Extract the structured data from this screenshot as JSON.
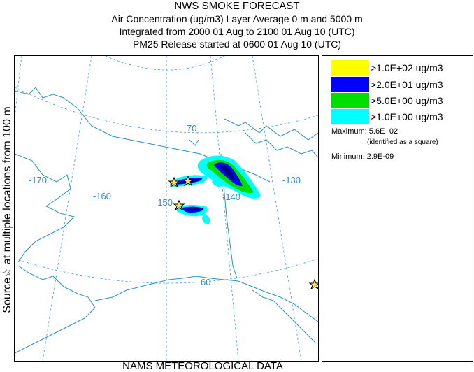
{
  "header": {
    "title": "NWS SMOKE FORECAST",
    "line2": "Air Concentration (ug/m3) Layer Average     0 m and  5000 m",
    "line3": "Integrated from 2000 01 Aug to 2100 01 Aug 10 (UTC)",
    "line4": "PM25 Release started at 0600 01 Aug 10 (UTC)"
  },
  "side_label": "Source☆   at multiple locations    from    100 m",
  "map": {
    "longitude_labels": [
      "-170",
      "-160",
      "-150",
      "-140",
      "-130"
    ],
    "latitude_labels": [
      "70",
      "60"
    ],
    "colors": {
      "coast": "#2a8fc8",
      "grid": "#3a9ad6",
      "label": "#2a8fc8",
      "border": "#2a8fc8"
    }
  },
  "legend": {
    "items": [
      {
        "label": ">1.0E+02 ug/m3",
        "color": "#ffff00"
      },
      {
        "label": ">2.0E+01 ug/m3",
        "color": "#0000ff"
      },
      {
        "label": ">5.0E+00 ug/m3",
        "color": "#00dd00"
      },
      {
        "label": ">1.0E+00 ug/m3",
        "color": "#00ffff"
      }
    ],
    "maximum_label": "Maximum:",
    "maximum_value": "5.6E+02",
    "maximum_note": "(identified as a square)",
    "minimum_label": "Minimum:",
    "minimum_value": "2.9E-09"
  },
  "footer": "NAMS METEOROLOGICAL DATA"
}
